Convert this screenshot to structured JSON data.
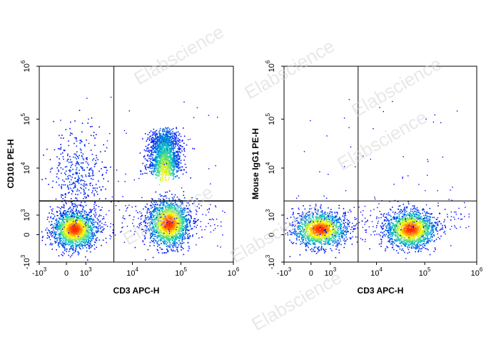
{
  "chart_data": [
    {
      "type": "scatter",
      "subtype": "flow-cytometry density dot plot",
      "xlabel": "CD3 APC-H",
      "ylabel": "CD101 PE-H",
      "xscale": "biexponential",
      "yscale": "biexponential",
      "x_ticks": [
        {
          "value": -1000,
          "base": "-10",
          "exp": "3"
        },
        {
          "value": 0,
          "base": "0",
          "exp": ""
        },
        {
          "value": 1000,
          "base": "10",
          "exp": "3"
        },
        {
          "value": 10000,
          "base": "10",
          "exp": "4"
        },
        {
          "value": 100000,
          "base": "10",
          "exp": "5"
        },
        {
          "value": 1000000,
          "base": "10",
          "exp": "6"
        }
      ],
      "y_ticks": [
        {
          "value": -1000,
          "base": "-10",
          "exp": "3"
        },
        {
          "value": 0,
          "base": "0",
          "exp": ""
        },
        {
          "value": 1000,
          "base": "10",
          "exp": "3"
        },
        {
          "value": 10000,
          "base": "10",
          "exp": "4"
        },
        {
          "value": 100000,
          "base": "10",
          "exp": "5"
        },
        {
          "value": 1000000,
          "base": "10",
          "exp": "6"
        }
      ],
      "gate": {
        "x": 4000,
        "y": 2000
      },
      "populations": [
        {
          "x": 400,
          "y": 300,
          "density": "very high"
        },
        {
          "x": 55000,
          "y": 600,
          "density": "very high"
        },
        {
          "x": 45000,
          "y": 8000,
          "density": "high",
          "extends_to_y": 40000
        },
        {
          "x": 500,
          "y": 8000,
          "density": "low"
        }
      ]
    },
    {
      "type": "scatter",
      "subtype": "flow-cytometry density dot plot",
      "xlabel": "CD3 APC-H",
      "ylabel": "Mouse IgG1 PE-H",
      "xscale": "biexponential",
      "yscale": "biexponential",
      "x_ticks": [
        {
          "value": -1000,
          "base": "-10",
          "exp": "3"
        },
        {
          "value": 0,
          "base": "0",
          "exp": ""
        },
        {
          "value": 1000,
          "base": "10",
          "exp": "3"
        },
        {
          "value": 10000,
          "base": "10",
          "exp": "4"
        },
        {
          "value": 100000,
          "base": "10",
          "exp": "5"
        },
        {
          "value": 1000000,
          "base": "10",
          "exp": "6"
        }
      ],
      "y_ticks": [
        {
          "value": -1000,
          "base": "-10",
          "exp": "3"
        },
        {
          "value": 0,
          "base": "0",
          "exp": ""
        },
        {
          "value": 1000,
          "base": "10",
          "exp": "3"
        },
        {
          "value": 10000,
          "base": "10",
          "exp": "4"
        },
        {
          "value": 100000,
          "base": "10",
          "exp": "5"
        },
        {
          "value": 1000000,
          "base": "10",
          "exp": "6"
        }
      ],
      "gate": {
        "x": 4000,
        "y": 2000
      },
      "populations": [
        {
          "x": 450,
          "y": 300,
          "density": "very high"
        },
        {
          "x": 50000,
          "y": 300,
          "density": "very high"
        }
      ]
    }
  ],
  "watermark": {
    "text": "Elabscience",
    "color": "#d6d6d6"
  },
  "colors": {
    "axis": "#000000",
    "density_low": "#0000ff",
    "density_mid": "#00c8c8",
    "density_high": "#ffff00",
    "density_peak": "#ff2000"
  }
}
